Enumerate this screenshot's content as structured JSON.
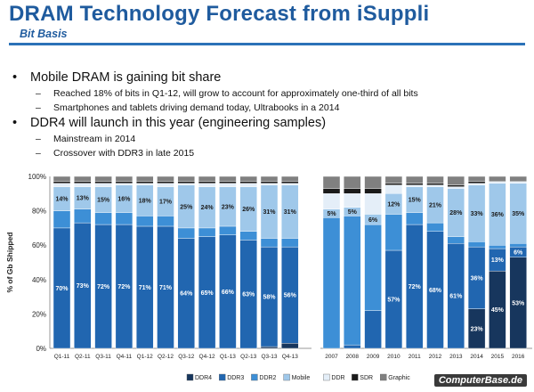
{
  "title": "DRAM Technology Forecast from iSuppli",
  "subtitle": "Bit Basis",
  "bullets": [
    {
      "text": "Mobile DRAM is gaining bit share",
      "subs": [
        "Reached 18% of bits in Q1-12, will grow to account for approximately one-third of all bits",
        "Smartphones and tablets driving demand today, Ultrabooks in a 2014"
      ]
    },
    {
      "text": "DDR4 will launch in this year (engineering samples)",
      "subs": [
        "Mainstream in 2014",
        "Crossover with DDR3 in late 2015"
      ]
    }
  ],
  "watermark": "ComputerBase.de",
  "chart_data": {
    "type": "bar",
    "stacked": true,
    "ylabel": "% of Gb Shipped",
    "ylim": [
      0,
      100
    ],
    "yticks": [
      "0%",
      "20%",
      "40%",
      "60%",
      "80%",
      "100%"
    ],
    "grid": false,
    "legend_position": "bottom",
    "groups": [
      {
        "categories": [
          "Q1-11",
          "Q2-11",
          "Q3-11",
          "Q4-11",
          "Q1-12",
          "Q2-12",
          "Q3-12",
          "Q4-12",
          "Q1-13",
          "Q2-13",
          "Q3-13",
          "Q4-13"
        ]
      },
      {
        "categories": [
          "2007",
          "2008",
          "2009",
          "2010",
          "2011",
          "2012",
          "2013",
          "2014",
          "2015",
          "2016"
        ]
      }
    ],
    "series": [
      {
        "name": "DDR4",
        "color": "#17365d",
        "values": [
          0,
          0,
          0,
          0,
          0,
          0,
          0,
          0,
          0,
          0,
          1,
          3,
          0,
          0,
          0,
          0,
          0,
          0,
          0,
          23,
          45,
          53
        ],
        "labels": [
          "",
          "",
          "",
          "",
          "",
          "",
          "",
          "",
          "",
          "",
          "",
          "",
          "",
          "",
          "",
          "",
          "",
          "",
          "",
          "23%",
          "45%",
          "53%"
        ]
      },
      {
        "name": "DDR3",
        "color": "#2166b0",
        "values": [
          70,
          73,
          72,
          72,
          71,
          71,
          64,
          65,
          66,
          63,
          58,
          56,
          0,
          2,
          22,
          57,
          72,
          68,
          61,
          36,
          13,
          6
        ],
        "labels": [
          "70%",
          "73%",
          "72%",
          "72%",
          "71%",
          "71%",
          "64%",
          "65%",
          "66%",
          "63%",
          "58%",
          "56%",
          "",
          "",
          "",
          "57%",
          "72%",
          "68%",
          "61%",
          "36%",
          "13%",
          "6%"
        ]
      },
      {
        "name": "DDR2",
        "color": "#3d8fd6",
        "values": [
          10,
          8,
          7,
          7,
          6,
          6,
          6,
          5,
          5,
          5,
          5,
          5,
          76,
          75,
          50,
          21,
          7,
          5,
          4,
          3,
          2,
          2
        ],
        "labels": [
          "",
          "",
          "",
          "",
          "",
          "",
          "",
          "",
          "",
          "",
          "",
          "",
          "",
          "",
          "",
          "",
          "",
          "",
          "",
          "",
          "",
          ""
        ]
      },
      {
        "name": "Mobile",
        "color": "#9fc8ea",
        "values": [
          14,
          13,
          15,
          16,
          18,
          17,
          25,
          24,
          23,
          26,
          31,
          31,
          5,
          5,
          6,
          12,
          15,
          21,
          28,
          33,
          36,
          35
        ],
        "labels": [
          "14%",
          "13%",
          "15%",
          "16%",
          "18%",
          "17%",
          "25%",
          "24%",
          "23%",
          "26%",
          "31%",
          "31%",
          "5%",
          "5%",
          "6%",
          "12%",
          "15%",
          "21%",
          "28%",
          "33%",
          "36%",
          "35%"
        ]
      },
      {
        "name": "DDR",
        "color": "#e4eef8",
        "values": [
          2,
          2,
          2,
          1,
          1,
          2,
          1,
          2,
          2,
          2,
          1,
          1,
          9,
          8,
          12,
          5,
          1,
          1,
          1,
          1,
          1,
          1
        ],
        "labels": [
          "",
          "",
          "",
          "",
          "",
          "",
          "",
          "",
          "",
          "",
          "",
          "",
          "",
          "",
          "",
          "",
          "",
          "",
          "",
          "",
          "",
          ""
        ]
      },
      {
        "name": "SDR",
        "color": "#1a1a1a",
        "values": [
          1,
          1,
          1,
          1,
          1,
          1,
          1,
          1,
          1,
          1,
          1,
          1,
          3,
          3,
          3,
          1,
          1,
          1,
          1,
          1,
          0,
          0
        ],
        "labels": [
          "",
          "",
          "",
          "",
          "",
          "",
          "",
          "",
          "",
          "",
          "",
          "",
          "",
          "",
          "",
          "",
          "",
          "",
          "",
          "",
          "",
          ""
        ]
      },
      {
        "name": "Graphic",
        "color": "#808080",
        "values": [
          3,
          3,
          3,
          3,
          3,
          3,
          3,
          3,
          3,
          3,
          3,
          3,
          7,
          7,
          7,
          4,
          4,
          4,
          5,
          3,
          3,
          3
        ],
        "labels": [
          "",
          "",
          "",
          "",
          "",
          "",
          "",
          "",
          "",
          "",
          "",
          "",
          "",
          "",
          "",
          "",
          "",
          "",
          "",
          "",
          "",
          ""
        ]
      }
    ]
  }
}
